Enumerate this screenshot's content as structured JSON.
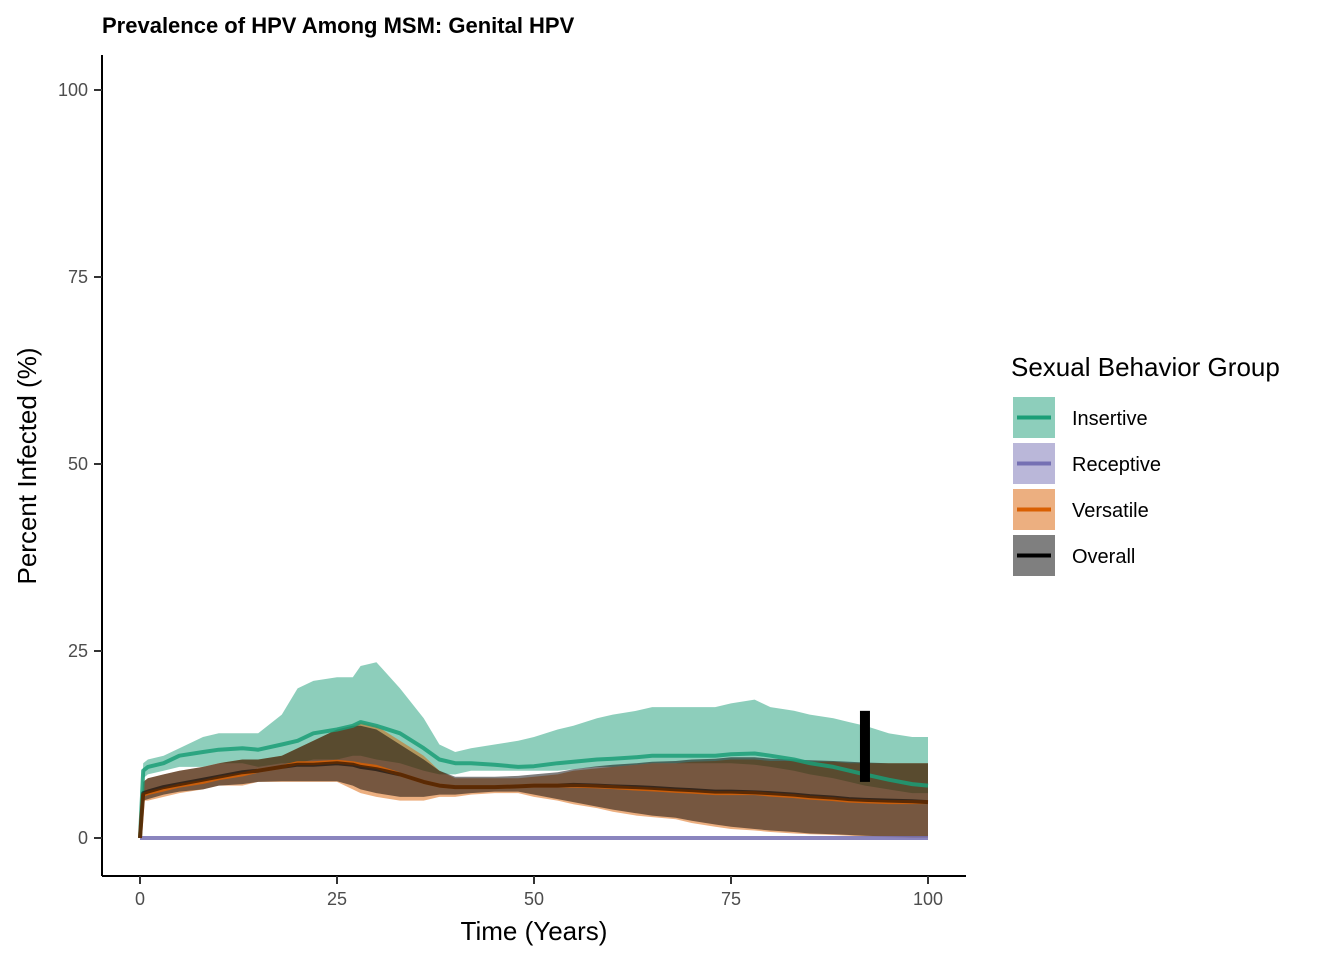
{
  "chart_data": {
    "type": "line",
    "title": "Prevalence of HPV Among MSM: Genital HPV",
    "xlabel": "Time (Years)",
    "ylabel": "Percent Infected (%)",
    "xlim": [
      -4.5,
      105
    ],
    "ylim": [
      -5,
      105
    ],
    "xticks": [
      0,
      25,
      50,
      75,
      100
    ],
    "yticks": [
      0,
      25,
      50,
      75,
      100
    ],
    "grid": false,
    "legend": {
      "title": "Sexual Behavior Group",
      "position": "right"
    },
    "series": [
      {
        "name": "Insertive",
        "line_color": "#1b9e77",
        "band_color": "#1b9e77",
        "x": [
          0,
          0.4,
          1,
          3,
          5,
          8,
          10,
          13,
          15,
          18,
          20,
          22,
          25,
          27,
          28,
          30,
          33,
          36,
          38,
          40,
          42,
          45,
          48,
          50,
          53,
          55,
          58,
          60,
          63,
          65,
          68,
          70,
          73,
          75,
          78,
          80,
          83,
          85,
          88,
          90,
          92,
          95,
          98,
          100
        ],
        "mean": [
          0,
          9,
          9.5,
          10,
          11,
          11.5,
          11.8,
          12,
          11.8,
          12.5,
          13,
          14,
          14.5,
          15,
          15.5,
          15,
          14,
          12,
          10.5,
          10,
          10,
          9.8,
          9.5,
          9.6,
          10,
          10.2,
          10.5,
          10.6,
          10.8,
          11,
          11,
          11,
          11,
          11.2,
          11.3,
          11,
          10.5,
          10,
          9.5,
          9,
          8.5,
          7.8,
          7.2,
          7
        ],
        "lower": [
          0,
          8,
          8.5,
          9,
          9.5,
          9.5,
          10,
          10,
          9.5,
          10,
          10,
          10.5,
          10.5,
          11,
          11,
          10.5,
          10,
          9,
          8.5,
          8.5,
          9,
          9,
          9,
          9,
          9,
          9.2,
          9.5,
          9.5,
          9.8,
          10,
          10,
          10,
          10,
          10,
          9.8,
          9.5,
          9,
          8.5,
          8,
          7.5,
          7,
          6.5,
          6,
          6
        ],
        "upper": [
          0,
          10,
          10.5,
          11,
          12,
          13.5,
          14,
          14,
          14,
          16.5,
          20,
          21,
          21.5,
          21.5,
          23,
          23.5,
          20,
          16,
          12.5,
          11.5,
          12,
          12.5,
          13,
          13.5,
          14.5,
          15,
          16,
          16.5,
          17,
          17.5,
          17.5,
          17.5,
          17.5,
          18,
          18.5,
          17.5,
          17,
          16.5,
          16,
          15.5,
          15,
          14,
          13.5,
          13.5
        ]
      },
      {
        "name": "Receptive",
        "line_color": "#7570b3",
        "band_color": "#7570b3",
        "x": [
          0,
          100
        ],
        "mean": [
          0,
          0
        ],
        "lower": [
          0,
          0
        ],
        "upper": [
          0,
          0
        ]
      },
      {
        "name": "Versatile",
        "line_color": "#d95f02",
        "band_color": "#d95f02",
        "x": [
          0,
          0.4,
          1,
          3,
          5,
          8,
          10,
          13,
          15,
          18,
          20,
          22,
          25,
          27,
          28,
          30,
          33,
          36,
          38,
          40,
          42,
          45,
          48,
          50,
          53,
          55,
          58,
          60,
          63,
          65,
          68,
          70,
          73,
          75,
          78,
          80,
          83,
          85,
          88,
          90,
          92,
          95,
          98,
          100
        ],
        "mean": [
          0,
          5.8,
          6,
          6.5,
          7,
          7.5,
          8,
          8.5,
          9,
          9.5,
          10,
          10,
          10.2,
          10,
          9.8,
          9.5,
          8.5,
          7.5,
          7,
          6.8,
          6.8,
          6.8,
          6.9,
          7,
          7,
          7,
          6.9,
          6.8,
          6.6,
          6.5,
          6.3,
          6.2,
          6,
          6,
          6,
          5.8,
          5.6,
          5.4,
          5.2,
          5,
          4.9,
          4.8,
          4.8,
          4.8
        ],
        "lower": [
          0,
          5,
          5,
          5.5,
          6,
          6.5,
          7,
          7,
          7.5,
          7.5,
          7.5,
          7.5,
          7.5,
          6.5,
          6,
          5.5,
          5,
          5,
          5.5,
          5.5,
          5.8,
          6,
          6,
          5.5,
          5,
          4.5,
          4,
          3.5,
          3,
          2.8,
          2.5,
          2,
          1.5,
          1.2,
          1,
          0.8,
          0.6,
          0.5,
          0.4,
          0.3,
          0.2,
          0.1,
          0,
          0
        ],
        "upper": [
          0,
          7.5,
          8,
          8.5,
          9,
          9.5,
          10,
          10.5,
          10.5,
          11,
          12,
          13,
          14.5,
          15,
          15.5,
          15,
          13,
          11,
          9,
          8,
          8,
          8,
          8,
          8.2,
          8.5,
          9,
          9.3,
          9.5,
          9.8,
          10,
          10,
          10.2,
          10.3,
          10.5,
          10.5,
          10.3,
          10.3,
          10.2,
          10.2,
          10,
          10,
          10,
          10,
          10
        ]
      },
      {
        "name": "Overall",
        "line_color": "#000000",
        "band_color": "#000000",
        "x": [
          0,
          0.4,
          1,
          3,
          5,
          8,
          10,
          13,
          15,
          18,
          20,
          22,
          25,
          27,
          28,
          30,
          33,
          36,
          38,
          40,
          42,
          45,
          48,
          50,
          53,
          55,
          58,
          60,
          63,
          65,
          68,
          70,
          73,
          75,
          78,
          80,
          83,
          85,
          88,
          90,
          92,
          95,
          98,
          100
        ],
        "mean": [
          0,
          6,
          6.2,
          6.8,
          7.2,
          7.8,
          8.2,
          8.8,
          9,
          9.5,
          9.8,
          9.8,
          10,
          9.8,
          9.5,
          9.2,
          8.5,
          7.5,
          7,
          6.8,
          6.8,
          6.8,
          6.9,
          7,
          7,
          7.1,
          7,
          6.9,
          6.8,
          6.7,
          6.5,
          6.4,
          6.2,
          6.2,
          6.1,
          6,
          5.8,
          5.6,
          5.4,
          5.2,
          5.1,
          5,
          4.9,
          4.8
        ],
        "lower": [
          0,
          5,
          5.2,
          5.8,
          6.2,
          6.5,
          7,
          7.2,
          7.5,
          7.6,
          7.6,
          7.6,
          7.6,
          7,
          6.5,
          6,
          5.5,
          5.5,
          5.8,
          5.8,
          6,
          6.2,
          6.2,
          5.8,
          5.2,
          4.8,
          4.2,
          3.8,
          3.3,
          3,
          2.7,
          2.3,
          1.8,
          1.5,
          1.2,
          1,
          0.8,
          0.6,
          0.5,
          0.4,
          0.3,
          0.2,
          0.1,
          0.1
        ],
        "upper": [
          0,
          7.5,
          8,
          8.5,
          9,
          9.5,
          10,
          10.5,
          10.5,
          11,
          12,
          13,
          14.5,
          15,
          15,
          14.5,
          12.5,
          10.5,
          9,
          8.2,
          8.2,
          8.2,
          8.3,
          8.5,
          8.8,
          9.2,
          9.6,
          9.8,
          10,
          10.2,
          10.3,
          10.5,
          10.6,
          10.8,
          10.8,
          10.6,
          10.5,
          10.4,
          10.3,
          10.2,
          10.1,
          10,
          10,
          10
        ]
      }
    ],
    "annotations": [
      {
        "type": "vertical-bar",
        "x": 92,
        "y_from": 7.5,
        "y_to": 17,
        "color": "#000000"
      }
    ]
  }
}
